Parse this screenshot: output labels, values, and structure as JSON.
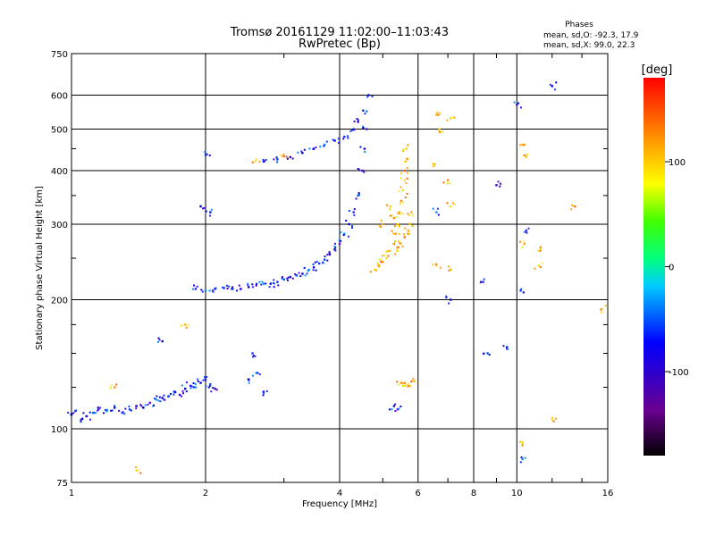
{
  "chart_data": {
    "type": "scatter",
    "title": "Tromsø 20161129 11:02:00–11:03:43",
    "subtitle": "RwPretec (Bp)",
    "xlabel": "Frequency [MHz]",
    "ylabel": "Stationary phase Virtual Height [km]",
    "x_scale": "log",
    "y_scale": "log",
    "xlim": [
      1,
      16
    ],
    "ylim": [
      75,
      750
    ],
    "x_ticks": [
      "1",
      "2",
      "4",
      "6",
      "8",
      "10",
      "16"
    ],
    "y_ticks": [
      "75",
      "100",
      "200",
      "300",
      "400",
      "500",
      "600",
      "750"
    ],
    "grid": true,
    "info": {
      "heading": "Phases",
      "line1": "mean, sd,O: -92.3, 17.9",
      "line2": "mean, sd,X:  99.0, 22.3"
    },
    "colorbar": {
      "label": "[deg]",
      "range": [
        -180,
        180
      ],
      "ticks": [
        "100",
        "0",
        "-100"
      ]
    },
    "series": [
      {
        "mode": "O",
        "points": [
          [
            1.0,
            108
          ],
          [
            1.02,
            110
          ],
          [
            1.05,
            104
          ],
          [
            1.08,
            107
          ],
          [
            1.12,
            109
          ],
          [
            1.15,
            111
          ],
          [
            1.2,
            110
          ],
          [
            1.25,
            112
          ],
          [
            1.3,
            109
          ],
          [
            1.35,
            111
          ],
          [
            1.4,
            113
          ],
          [
            1.45,
            112
          ],
          [
            1.5,
            115
          ],
          [
            1.55,
            117
          ],
          [
            1.6,
            118
          ],
          [
            1.65,
            119
          ],
          [
            1.7,
            122
          ],
          [
            1.75,
            120
          ],
          [
            1.8,
            124
          ],
          [
            1.85,
            126
          ],
          [
            1.9,
            125
          ],
          [
            1.95,
            128
          ],
          [
            2.0,
            130
          ],
          [
            2.05,
            127
          ],
          [
            2.1,
            124
          ],
          [
            1.6,
            160
          ],
          [
            2.5,
            130
          ],
          [
            2.6,
            135
          ],
          [
            2.7,
            122
          ],
          [
            2.55,
            150
          ],
          [
            2.0,
            435
          ],
          [
            1.95,
            330
          ],
          [
            2.05,
            320
          ],
          [
            1.9,
            212
          ],
          [
            2.0,
            210
          ],
          [
            2.1,
            212
          ],
          [
            2.2,
            213
          ],
          [
            2.3,
            212
          ],
          [
            2.4,
            212
          ],
          [
            2.5,
            214
          ],
          [
            2.6,
            216
          ],
          [
            2.7,
            218
          ],
          [
            2.8,
            218
          ],
          [
            2.9,
            220
          ],
          [
            3.0,
            223
          ],
          [
            3.1,
            226
          ],
          [
            3.2,
            228
          ],
          [
            3.3,
            230
          ],
          [
            3.4,
            234
          ],
          [
            3.5,
            238
          ],
          [
            3.6,
            243
          ],
          [
            3.7,
            248
          ],
          [
            3.8,
            255
          ],
          [
            3.9,
            262
          ],
          [
            4.0,
            270
          ],
          [
            4.1,
            285
          ],
          [
            4.2,
            300
          ],
          [
            4.3,
            320
          ],
          [
            4.4,
            350
          ],
          [
            4.5,
            400
          ],
          [
            4.55,
            450
          ],
          [
            4.6,
            500
          ],
          [
            4.6,
            550
          ],
          [
            4.65,
            600
          ],
          [
            2.7,
            420
          ],
          [
            2.9,
            425
          ],
          [
            3.1,
            430
          ],
          [
            3.3,
            440
          ],
          [
            3.5,
            450
          ],
          [
            3.7,
            460
          ],
          [
            3.9,
            470
          ],
          [
            4.1,
            480
          ],
          [
            4.3,
            500
          ],
          [
            4.4,
            520
          ],
          [
            5.3,
            113
          ],
          [
            5.4,
            111
          ],
          [
            6.6,
            320
          ],
          [
            7.1,
            200
          ],
          [
            8.4,
            220
          ],
          [
            8.6,
            150
          ],
          [
            9.0,
            370
          ],
          [
            9.5,
            155
          ],
          [
            10.0,
            570
          ],
          [
            10.3,
            85
          ],
          [
            12.0,
            630
          ],
          [
            10.5,
            290
          ],
          [
            10.2,
            210
          ]
        ]
      },
      {
        "mode": "X",
        "points": [
          [
            4.8,
            235
          ],
          [
            4.9,
            240
          ],
          [
            5.0,
            245
          ],
          [
            5.1,
            250
          ],
          [
            5.2,
            260
          ],
          [
            5.3,
            270
          ],
          [
            5.35,
            285
          ],
          [
            5.4,
            300
          ],
          [
            5.45,
            320
          ],
          [
            5.5,
            340
          ],
          [
            5.55,
            360
          ],
          [
            5.6,
            380
          ],
          [
            5.6,
            400
          ],
          [
            5.62,
            420
          ],
          [
            5.65,
            450
          ],
          [
            5.2,
            330
          ],
          [
            5.3,
            310
          ],
          [
            5.4,
            260
          ],
          [
            5.5,
            270
          ],
          [
            5.6,
            280
          ],
          [
            5.7,
            290
          ],
          [
            5.75,
            300
          ],
          [
            5.8,
            320
          ],
          [
            5.5,
            128
          ],
          [
            5.6,
            126
          ],
          [
            5.7,
            127
          ],
          [
            5.8,
            129
          ],
          [
            6.6,
            540
          ],
          [
            7.1,
            530
          ],
          [
            6.5,
            410
          ],
          [
            7.0,
            380
          ],
          [
            7.1,
            330
          ],
          [
            6.6,
            240
          ],
          [
            7.1,
            235
          ],
          [
            10.3,
            460
          ],
          [
            10.5,
            430
          ],
          [
            10.4,
            270
          ],
          [
            11.3,
            265
          ],
          [
            11.2,
            240
          ],
          [
            12.0,
            105
          ],
          [
            13.5,
            330
          ],
          [
            15.5,
            190
          ],
          [
            10.3,
            92
          ],
          [
            1.8,
            175
          ],
          [
            1.25,
            125
          ],
          [
            1.4,
            80
          ],
          [
            2.6,
            425
          ],
          [
            3.0,
            432
          ],
          [
            5.0,
            300
          ],
          [
            6.7,
            500
          ]
        ]
      }
    ]
  }
}
